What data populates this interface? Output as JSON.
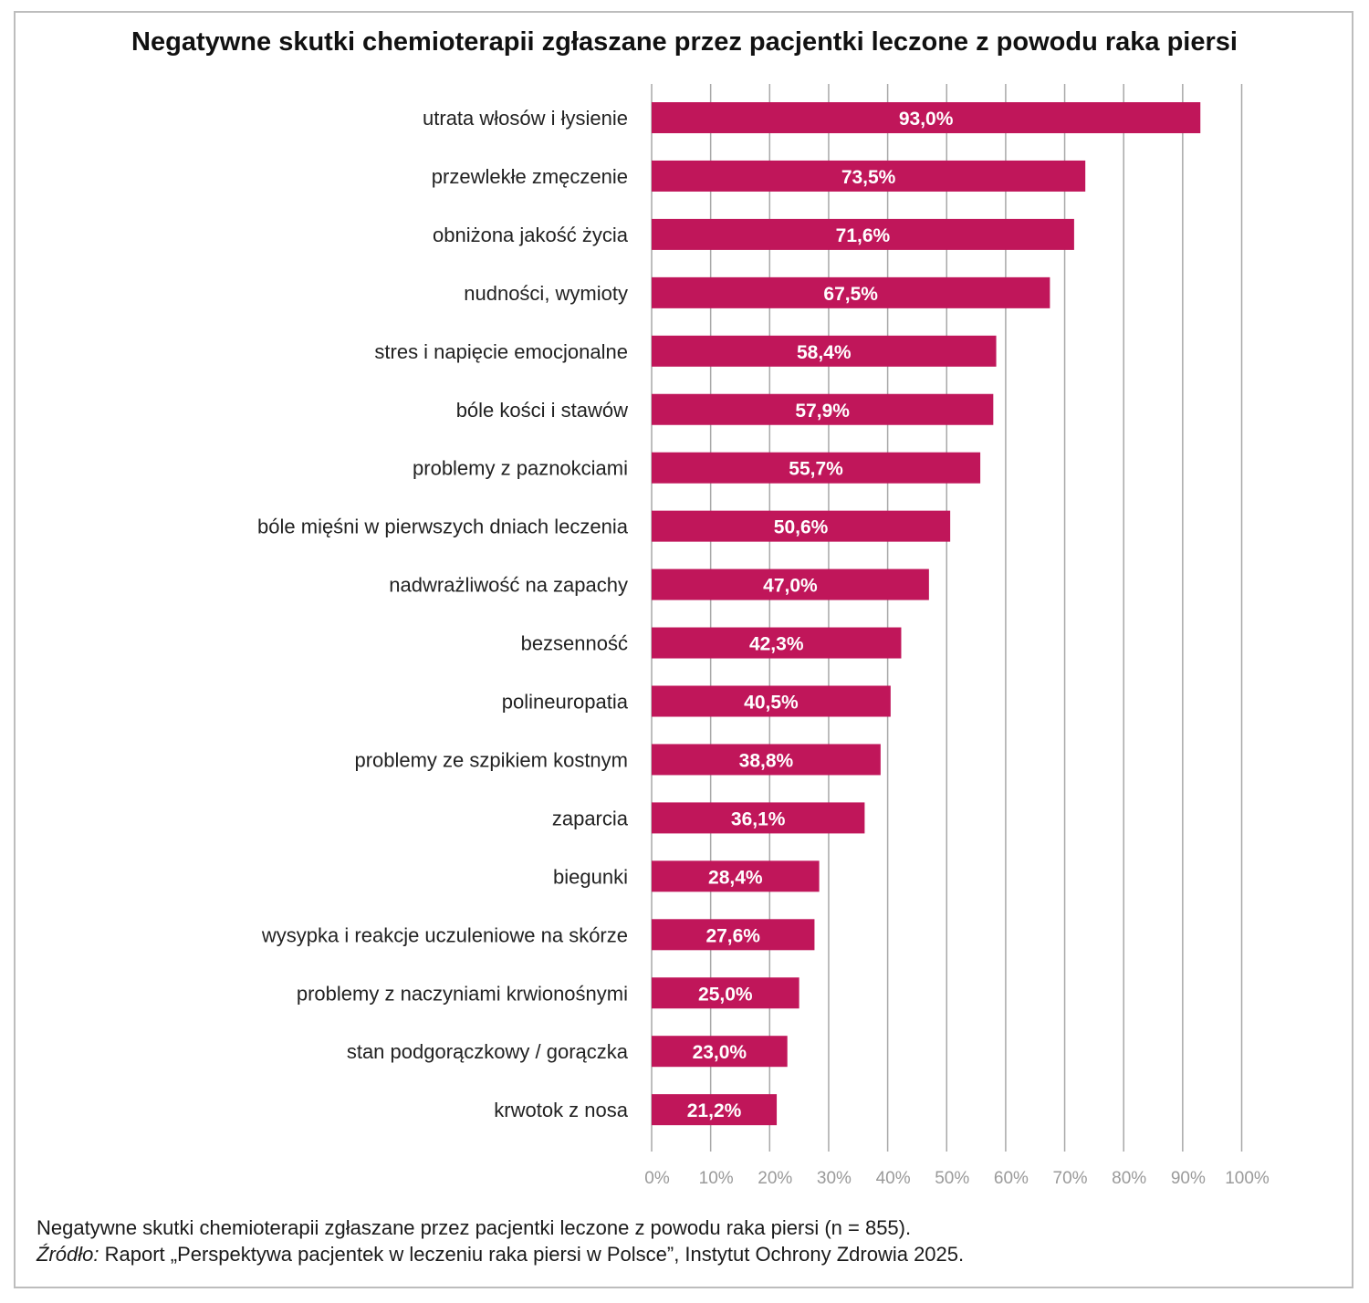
{
  "chart_data": {
    "type": "bar",
    "orientation": "horizontal",
    "title": "Negatywne skutki chemioterapii zgłaszane przez pacjentki leczone z powodu raka piersi",
    "categories": [
      "utrata włosów i łysienie",
      "przewlekłe zmęczenie",
      "obniżona jakość życia",
      "nudności, wymioty",
      "stres i napięcie emocjonalne",
      "bóle kości i stawów",
      "problemy z paznokciami",
      "bóle mięśni w pierwszych dniach leczenia",
      "nadwrażliwość na zapachy",
      "bezsenność",
      "polineuropatia",
      "problemy ze szpikiem kostnym",
      "zaparcia",
      "biegunki",
      "wysypka i reakcje uczuleniowe na skórze",
      "problemy z naczyniami krwionośnymi",
      "stan podgorączkowy / gorączka",
      "krwotok z nosa"
    ],
    "values": [
      93.0,
      73.5,
      71.6,
      67.5,
      58.4,
      57.9,
      55.7,
      50.6,
      47.0,
      42.3,
      40.5,
      38.8,
      36.1,
      28.4,
      27.6,
      25.0,
      23.0,
      21.2
    ],
    "value_labels": [
      "93,0%",
      "73,5%",
      "71,6%",
      "67,5%",
      "58,4%",
      "57,9%",
      "55,7%",
      "50,6%",
      "47,0%",
      "42,3%",
      "40,5%",
      "38,8%",
      "36,1%",
      "28,4%",
      "27,6%",
      "25,0%",
      "23,0%",
      "21,2%"
    ],
    "xlim": [
      0,
      100
    ],
    "x_ticks": [
      0,
      10,
      20,
      30,
      40,
      50,
      60,
      70,
      80,
      90,
      100
    ],
    "x_tick_labels": [
      "0%",
      "10%",
      "20%",
      "30%",
      "40%",
      "50%",
      "60%",
      "70%",
      "80%",
      "90%",
      "100%"
    ],
    "grid": true,
    "bar_color": "#c0165a"
  },
  "footer": {
    "note": "Negatywne skutki chemioterapii zgłaszane przez pacjentki leczone z powodu raka piersi (n = 855).",
    "source_label": "Źródło:",
    "source_text": " Raport „Perspektywa pacjentek w leczeniu raka piersi w Polsce”, Instytut Ochrony Zdrowia 2025."
  }
}
